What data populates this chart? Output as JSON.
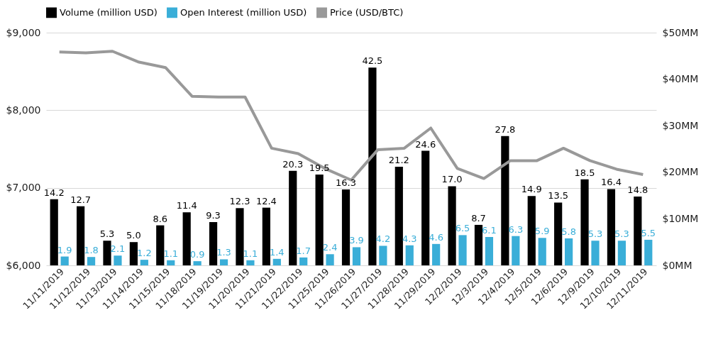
{
  "chart_data": {
    "type": "bar",
    "categories": [
      "11/11/2019",
      "11/12/2019",
      "11/13/2019",
      "11/14/2019",
      "11/15/2019",
      "11/18/2019",
      "11/19/2019",
      "11/20/2019",
      "11/21/2019",
      "11/22/2019",
      "11/25/2019",
      "11/26/2019",
      "11/27/2019",
      "11/28/2019",
      "11/29/2019",
      "12/2/2019",
      "12/3/2019",
      "12/4/2019",
      "12/5/2019",
      "12/6/2019",
      "12/9/2019",
      "12/10/2019",
      "12/11/2019"
    ],
    "series": [
      {
        "name": "Volume (million USD)",
        "axis": "y2",
        "color": "#000000",
        "values": [
          14.2,
          12.7,
          5.3,
          5.0,
          8.6,
          11.4,
          9.3,
          12.3,
          12.4,
          20.3,
          19.5,
          16.3,
          42.5,
          21.2,
          24.6,
          17.0,
          8.7,
          27.8,
          14.9,
          13.5,
          18.5,
          16.4,
          14.8
        ],
        "value_labels": [
          "14.2",
          "12.7",
          "5.3",
          "5.0",
          "8.6",
          "11.4",
          "9.3",
          "12.3",
          "12.4",
          "20.3",
          "19.5",
          "16.3",
          "42.5",
          "21.2",
          "24.6",
          "17.0",
          "8.7",
          "27.8",
          "14.9",
          "13.5",
          "18.5",
          "16.4",
          "14.8"
        ]
      },
      {
        "name": "Open Interest (million USD)",
        "axis": "y2",
        "color": "#3aaed8",
        "values": [
          1.9,
          1.8,
          2.1,
          1.2,
          1.1,
          0.9,
          1.3,
          1.1,
          1.4,
          1.7,
          2.4,
          3.9,
          4.2,
          4.3,
          4.6,
          6.5,
          6.1,
          6.3,
          5.9,
          5.8,
          5.3,
          5.3,
          5.5
        ],
        "value_labels": [
          "1.9",
          "1.8",
          "2.1",
          "1.2",
          "1.1",
          "0.9",
          "1.3",
          "1.1",
          "1.4",
          "1.7",
          "2.4",
          "3.9",
          "4.2",
          "4.3",
          "4.6",
          "6.5",
          "6.1",
          "6.3",
          "5.9",
          "5.8",
          "5.3",
          "5.3",
          "5.5"
        ]
      },
      {
        "name": "Price (USD/BTC)",
        "type": "line",
        "color": "#999999",
        "values": [
          8750,
          8740,
          8760,
          8620,
          8550,
          8180,
          8170,
          8170,
          7510,
          7440,
          7250,
          7100,
          7490,
          7510,
          7770,
          7250,
          7120,
          7350,
          7350,
          7510,
          7350,
          7240,
          7170
        ]
      }
    ],
    "ylim": [
      6000,
      9000
    ],
    "yticks": [
      {
        "value": 6000,
        "label": "$6,000"
      },
      {
        "value": 7000,
        "label": "$7,000"
      },
      {
        "value": 8000,
        "label": "$8,000"
      },
      {
        "value": 9000,
        "label": "$9,000"
      }
    ],
    "y2lim": [
      0,
      50
    ],
    "y2ticks": [
      {
        "value": 0,
        "label": "$0MM"
      },
      {
        "value": 10,
        "label": "$10MM"
      },
      {
        "value": 20,
        "label": "$20MM"
      },
      {
        "value": 30,
        "label": "$30MM"
      },
      {
        "value": 40,
        "label": "$40MM"
      },
      {
        "value": 50,
        "label": "$50MM"
      }
    ],
    "grid": "y",
    "legend": "top",
    "marker": "none",
    "line_style": "solid"
  }
}
